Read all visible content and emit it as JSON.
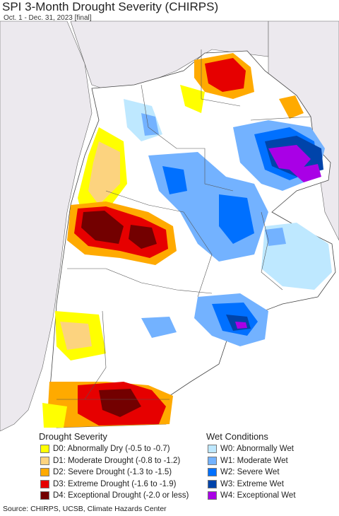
{
  "header": {
    "title": "SPI 3-Month Drought Severity (CHIRPS)",
    "subtitle": "Oct. 1 - Dec. 31, 2023 [final]"
  },
  "legend": {
    "drought": {
      "title": "Drought Severity",
      "items": [
        {
          "label": "D0: Abnormally Dry (-0.5 to -0.7)",
          "color": "#ffff00"
        },
        {
          "label": "D1: Moderate Drought (-0.8 to -1.2)",
          "color": "#fcd37f"
        },
        {
          "label": "D2: Severe Drought (-1.3 to -1.5)",
          "color": "#ffaa00"
        },
        {
          "label": "D3: Extreme Drought (-1.6 to -1.9)",
          "color": "#e60000"
        },
        {
          "label": "D4: Exceptional Drought (-2.0 or less)",
          "color": "#730000"
        }
      ]
    },
    "wet": {
      "title": "Wet Conditions",
      "items": [
        {
          "label": "W0: Abnormally Wet",
          "color": "#bee8ff"
        },
        {
          "label": "W1: Moderate Wet",
          "color": "#73b2ff"
        },
        {
          "label": "W2: Severe Wet",
          "color": "#0070ff"
        },
        {
          "label": "W3: Extreme Wet",
          "color": "#0044aa"
        },
        {
          "label": "W4: Exceptional Wet",
          "color": "#a900e6"
        }
      ]
    }
  },
  "footer": {
    "source": "Source: CHIRPS, UCSB, Climate Hazards Center"
  }
}
